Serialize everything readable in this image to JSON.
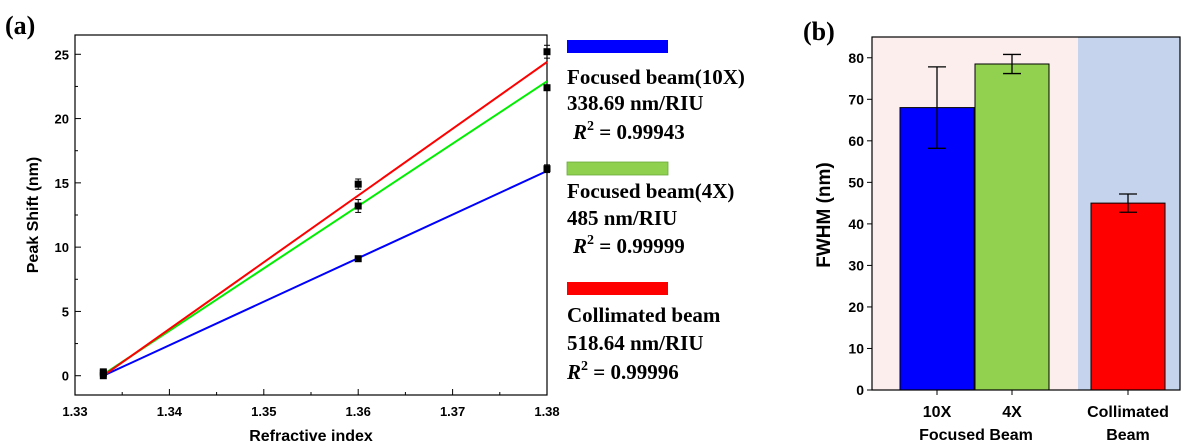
{
  "panel_a": {
    "label": "(a)",
    "legend": [
      {
        "name": "Focused beam(10X)",
        "sensitivity": "338.69 nm/RIU",
        "r2": "0.99943"
      },
      {
        "name": "Focused beam(4X)",
        "sensitivity": "485 nm/RIU",
        "r2": "0.99999"
      },
      {
        "name": "Collimated beam",
        "sensitivity": "518.64 nm/RIU",
        "r2": "0.99996"
      }
    ]
  },
  "panel_b": {
    "label": "(b)"
  },
  "colors": {
    "blue": "#0000ff",
    "green": "#00ee00",
    "red": "#ff0000",
    "legend_green": "#8fd14f",
    "bar_blue": "#0000ff",
    "bar_green": "#92d050",
    "bar_red": "#ff0000",
    "bg_pink": "#fdeeee",
    "bg_blue": "#c5d3ec"
  },
  "chart_data": [
    {
      "type": "line",
      "xlabel": "Refractive index",
      "ylabel": "Peak Shift (nm)",
      "xlim": [
        1.33,
        1.38
      ],
      "ylim": [
        -1.5,
        26.5
      ],
      "xticks": [
        1.33,
        1.34,
        1.35,
        1.36,
        1.37,
        1.38
      ],
      "xtick_labels": [
        "1.33",
        "1.34",
        "1.35",
        "1.36",
        "1.37",
        "1.38"
      ],
      "yticks": [
        0,
        5,
        10,
        15,
        20,
        25
      ],
      "ytick_labels": [
        "0",
        "5",
        "10",
        "15",
        "20",
        "25"
      ],
      "series": [
        {
          "color_key": "blue",
          "x": [
            1.333,
            1.36,
            1.38
          ],
          "y": [
            0,
            9.1,
            16.1
          ],
          "err": [
            0.2,
            0.2,
            0.3
          ],
          "fit": [
            [
              1.333,
              0.0
            ],
            [
              1.38,
              15.92
            ]
          ]
        },
        {
          "color_key": "green",
          "x": [
            1.333,
            1.36,
            1.38
          ],
          "y": [
            0.2,
            13.2,
            22.4
          ],
          "err": [
            0.2,
            0.5,
            0.2
          ],
          "fit": [
            [
              1.333,
              0.1
            ],
            [
              1.38,
              22.9
            ]
          ]
        },
        {
          "color_key": "red",
          "x": [
            1.333,
            1.36,
            1.38
          ],
          "y": [
            0.3,
            14.9,
            25.2
          ],
          "err": [
            0.2,
            0.4,
            0.5
          ],
          "fit": [
            [
              1.333,
              0.0
            ],
            [
              1.38,
              24.4
            ]
          ]
        }
      ]
    },
    {
      "type": "bar",
      "ylabel": "FWHM (nm)",
      "ylim": [
        0,
        85
      ],
      "yticks": [
        0,
        10,
        20,
        30,
        40,
        50,
        60,
        70,
        80
      ],
      "ytick_labels": [
        "0",
        "10",
        "20",
        "30",
        "40",
        "50",
        "60",
        "70",
        "80"
      ],
      "categories": [
        {
          "line1": "10X",
          "line2": ""
        },
        {
          "line1": "4X",
          "line2": ""
        },
        {
          "line1": "Collimated",
          "line2": "Beam"
        }
      ],
      "group_label": "Focused Beam",
      "values": [
        68,
        78.5,
        45
      ],
      "errors": [
        9.8,
        2.3,
        2.2
      ],
      "bar_color_keys": [
        "bar_blue",
        "bar_green",
        "bar_red"
      ]
    }
  ]
}
